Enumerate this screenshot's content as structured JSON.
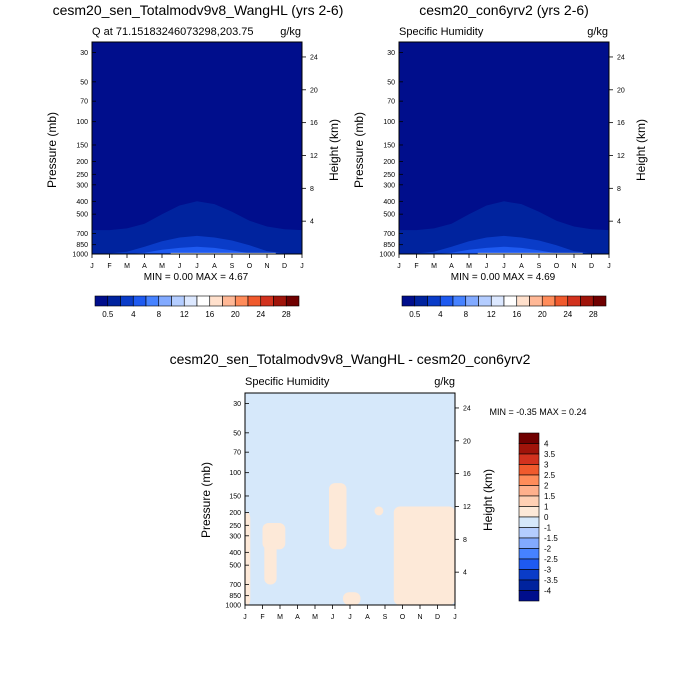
{
  "panels": [
    {
      "title": "cesm20_sen_Totalmodv9v8_WangHL (yrs 2-6)",
      "subtitle_left": "Q at 71.15183246073298,203.75",
      "subtitle_right": "g/kg",
      "stats": "MIN =   0.00 MAX =   4.67"
    },
    {
      "title": "cesm20_con6yrv2 (yrs 2-6)",
      "subtitle_left": "Specific Humidity",
      "subtitle_right": "g/kg",
      "stats": "MIN =   0.00 MAX =   4.69"
    },
    {
      "title": "cesm20_sen_Totalmodv9v8_WangHL - cesm20_con6yrv2",
      "subtitle_left": "Specific Humidity",
      "subtitle_right": "g/kg",
      "stats": "MIN =  -0.35 MAX =   0.24"
    }
  ],
  "axis_labels": {
    "ylabel": "Pressure (mb)",
    "y2label": "Height (km)"
  },
  "chart_data": [
    {
      "type": "heatmap",
      "title": "cesm20_sen_Totalmodv9v8_WangHL (yrs 2-6)",
      "subtitle": "Q at 71.15183246073298,203.75",
      "units": "g/kg",
      "x_ticks": [
        "J",
        "F",
        "M",
        "A",
        "M",
        "J",
        "J",
        "A",
        "S",
        "O",
        "N",
        "D",
        "J"
      ],
      "y_ticks": [
        30,
        50,
        70,
        100,
        150,
        200,
        250,
        300,
        400,
        500,
        700,
        850,
        1000
      ],
      "y_scale": "log",
      "y_reversed": true,
      "y2_ticks": [
        4,
        8,
        12,
        16,
        20,
        24
      ],
      "ylabel": "Pressure (mb)",
      "y2label": "Height (km)",
      "levels": [
        0.5,
        2,
        4,
        6,
        8,
        10,
        12,
        14,
        16,
        18,
        20,
        22,
        24,
        26,
        28
      ],
      "fill_colors": [
        "#000e8c",
        "#00239e",
        "#0a3cc8",
        "#1e5af0",
        "#4682ff",
        "#82aaff",
        "#b4cdff",
        "#dce8ff",
        "#ffffff",
        "#ffe0cc",
        "#ffb896",
        "#ff8c5a",
        "#f05a2d",
        "#d2321e",
        "#a0140a",
        "#700000"
      ],
      "min": 0.0,
      "max": 4.67,
      "contour_top_pressure": {
        "level_0.5": [
          660,
          660,
          640,
          590,
          500,
          430,
          400,
          420,
          480,
          560,
          620,
          650,
          660
        ],
        "level_2": [
          1000,
          990,
          960,
          880,
          800,
          750,
          730,
          750,
          790,
          860,
          950,
          990,
          1000
        ],
        "level_4": [
          1000,
          1000,
          1000,
          980,
          930,
          900,
          880,
          900,
          940,
          990,
          1000,
          1000,
          1000
        ]
      }
    },
    {
      "type": "heatmap",
      "title": "cesm20_con6yrv2 (yrs 2-6)",
      "subtitle": "Specific Humidity",
      "units": "g/kg",
      "x_ticks": [
        "J",
        "F",
        "M",
        "A",
        "M",
        "J",
        "J",
        "A",
        "S",
        "O",
        "N",
        "D",
        "J"
      ],
      "y_ticks": [
        30,
        50,
        70,
        100,
        150,
        200,
        250,
        300,
        400,
        500,
        700,
        850,
        1000
      ],
      "y_scale": "log",
      "y_reversed": true,
      "y2_ticks": [
        4,
        8,
        12,
        16,
        20,
        24
      ],
      "ylabel": "Pressure (mb)",
      "y2label": "Height (km)",
      "levels": [
        0.5,
        2,
        4,
        6,
        8,
        10,
        12,
        14,
        16,
        18,
        20,
        22,
        24,
        26,
        28
      ],
      "fill_colors": [
        "#000e8c",
        "#00239e",
        "#0a3cc8",
        "#1e5af0",
        "#4682ff",
        "#82aaff",
        "#b4cdff",
        "#dce8ff",
        "#ffffff",
        "#ffe0cc",
        "#ffb896",
        "#ff8c5a",
        "#f05a2d",
        "#d2321e",
        "#a0140a",
        "#700000"
      ],
      "min": 0.0,
      "max": 4.69,
      "contour_top_pressure": {
        "level_0.5": [
          660,
          660,
          640,
          590,
          500,
          430,
          400,
          420,
          480,
          560,
          620,
          650,
          660
        ],
        "level_2": [
          1000,
          990,
          960,
          880,
          800,
          750,
          730,
          750,
          790,
          860,
          950,
          990,
          1000
        ],
        "level_4": [
          1000,
          1000,
          1000,
          980,
          930,
          900,
          880,
          900,
          940,
          990,
          1000,
          1000,
          1000
        ]
      }
    },
    {
      "type": "heatmap",
      "title": "cesm20_sen_Totalmodv9v8_WangHL - cesm20_con6yrv2",
      "subtitle": "Specific Humidity",
      "units": "g/kg",
      "x_ticks": [
        "J",
        "F",
        "M",
        "A",
        "M",
        "J",
        "J",
        "A",
        "S",
        "O",
        "N",
        "D",
        "J"
      ],
      "y_ticks": [
        30,
        50,
        70,
        100,
        150,
        200,
        250,
        300,
        400,
        500,
        700,
        850,
        1000
      ],
      "y_scale": "log",
      "y_reversed": true,
      "y2_ticks": [
        4,
        8,
        12,
        16,
        20,
        24
      ],
      "ylabel": "Pressure (mb)",
      "y2label": "Height (km)",
      "levels": [
        -4,
        -3.5,
        -3,
        -2.5,
        -2,
        -1.5,
        -1,
        0,
        1,
        1.5,
        2,
        2.5,
        3,
        3.5,
        4
      ],
      "level_labels": [
        "4",
        "3.5",
        "3",
        "2.5",
        "2",
        "1.5",
        "1",
        "0",
        "-1",
        "-1.5",
        "-2",
        "-2.5",
        "-3",
        "-3.5",
        "-4"
      ],
      "fill_colors": [
        "#000e8c",
        "#00239e",
        "#0a3cc8",
        "#1e5af0",
        "#4682ff",
        "#82aaff",
        "#b4cdff",
        "#d6e8fa",
        "#fde9d8",
        "#ffd0b4",
        "#ffb08c",
        "#ff8c5a",
        "#f05a2d",
        "#d2321e",
        "#a0140a",
        "#700000"
      ],
      "background_color": "#d6e8fa",
      "positive_color": "#fde9d8",
      "min": -0.35,
      "max": 0.24,
      "positive_regions": [
        {
          "month": [
            0.0,
            0.3
          ],
          "pressure": [
            200,
            1000
          ]
        },
        {
          "month": [
            1.0,
            2.3
          ],
          "pressure": [
            240,
            380
          ]
        },
        {
          "month": [
            1.1,
            1.8
          ],
          "pressure": [
            300,
            700
          ]
        },
        {
          "month": [
            4.8,
            5.8
          ],
          "pressure": [
            120,
            380
          ]
        },
        {
          "month": [
            7.4,
            7.9
          ],
          "pressure": [
            180,
            210
          ]
        },
        {
          "month": [
            8.5,
            12.0
          ],
          "pressure": [
            180,
            1000
          ]
        },
        {
          "month": [
            5.6,
            6.6
          ],
          "pressure": [
            800,
            1000
          ]
        }
      ]
    }
  ]
}
